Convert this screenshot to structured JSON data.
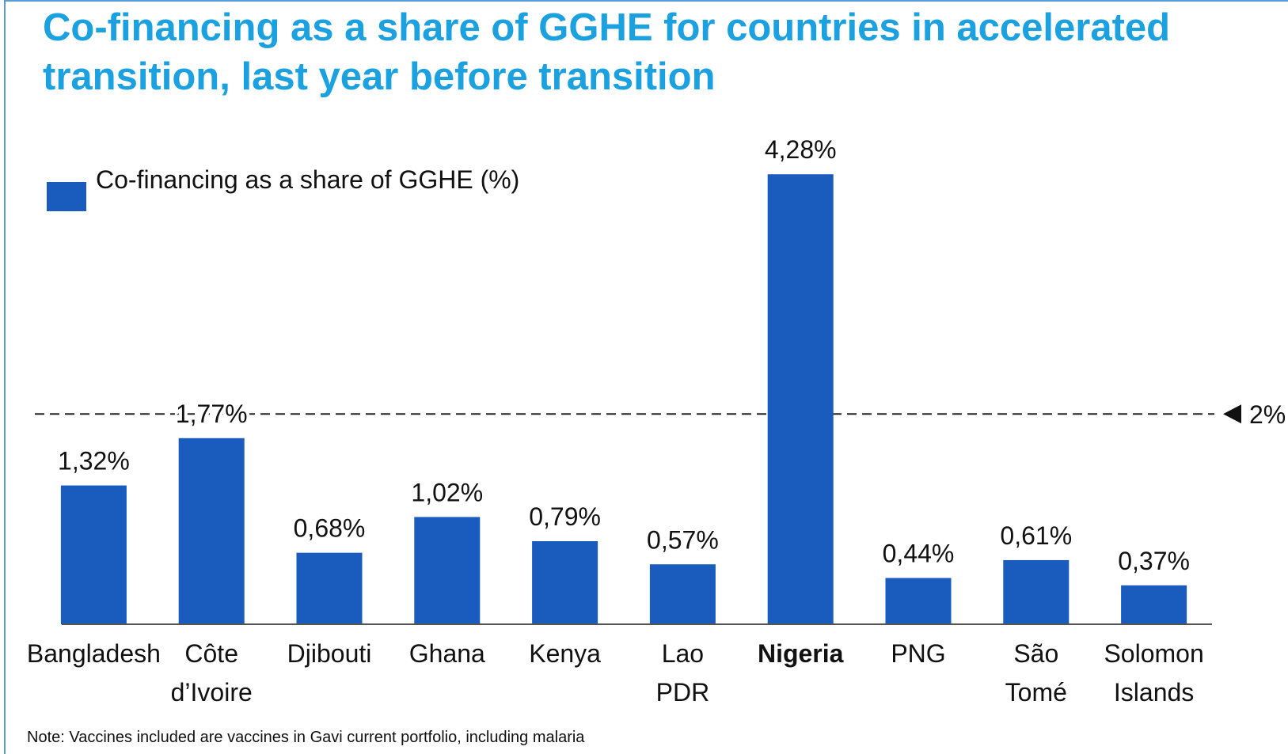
{
  "chart_data": {
    "type": "bar",
    "title": "Co-financing as a share of GGHE for countries in accelerated transition, last year before transition",
    "categories": [
      "Bangladesh",
      "Côte d’Ivoire",
      "Djibouti",
      "Ghana",
      "Kenya",
      "Lao PDR",
      "Nigeria",
      "PNG",
      "São Tomé",
      "Solomon Islands"
    ],
    "category_label_colors": [
      "#111111",
      "#111111",
      "#111111",
      "#111111",
      "#111111",
      "#111111",
      "#e4473c",
      "#111111",
      "#111111",
      "#111111"
    ],
    "series": [
      {
        "name": "Co-financing as a share of GGHE (%)",
        "color": "#1a5cbe",
        "values": [
          1.32,
          1.77,
          0.68,
          1.02,
          0.79,
          0.57,
          4.28,
          0.44,
          0.61,
          0.37
        ],
        "value_labels": [
          "1,32%",
          "1,77%",
          "0,68%",
          "1,02%",
          "0,79%",
          "0,57%",
          "4,28%",
          "0,44%",
          "0,61%",
          "0,37%"
        ]
      }
    ],
    "ylim": [
      0,
      4.5
    ],
    "reference_line": {
      "value": 2,
      "label": "2%"
    },
    "legend": "upper left",
    "note": "Note:  Vaccines included are vaccines in Gavi current portfolio, including malaria"
  }
}
